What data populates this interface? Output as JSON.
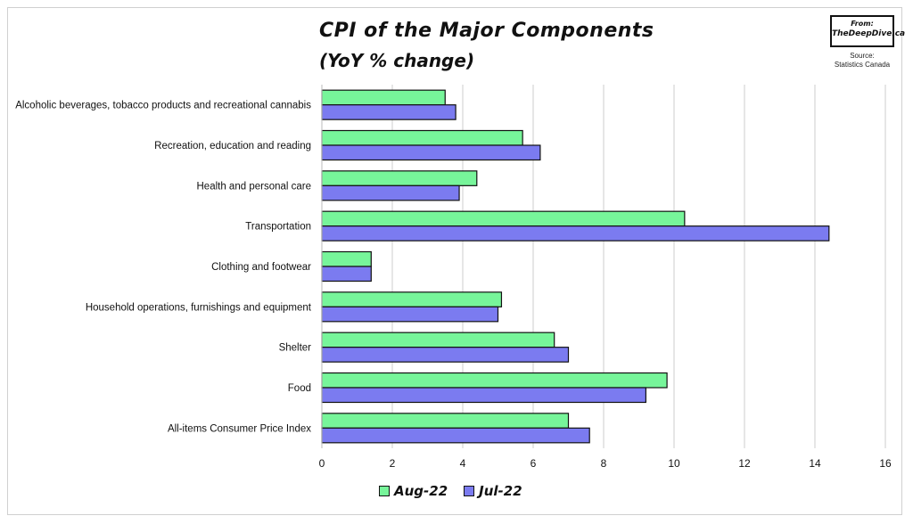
{
  "header": {
    "title": "CPI of the Major Components",
    "subtitle": "(YoY % change)",
    "brand_line1": "From:",
    "brand_line2": "TheDeepDive.ca",
    "source_line1": "Source:",
    "source_line2": "Statistics Canada"
  },
  "colors": {
    "aug": "#77f59a",
    "jul": "#7b7bf0",
    "stroke": "#111111",
    "grid": "#cccccc"
  },
  "chart_data": {
    "type": "bar",
    "orientation": "horizontal",
    "title": "CPI of the Major Components",
    "subtitle": "(YoY % change)",
    "categories": [
      "Alcoholic beverages, tobacco products and recreational cannabis",
      "Recreation, education and reading",
      "Health and personal care",
      "Transportation",
      "Clothing and footwear",
      "Household operations, furnishings and equipment",
      "Shelter",
      "Food",
      "All-items Consumer Price Index"
    ],
    "series": [
      {
        "name": "Aug-22",
        "values": [
          3.5,
          5.7,
          4.4,
          10.3,
          1.4,
          5.1,
          6.6,
          9.8,
          7.0
        ]
      },
      {
        "name": "Jul-22",
        "values": [
          3.8,
          6.2,
          3.9,
          14.4,
          1.4,
          5.0,
          7.0,
          9.2,
          7.6
        ]
      }
    ],
    "xlim": [
      0,
      16
    ],
    "xticks": [
      "0",
      "2",
      "4",
      "6",
      "8",
      "10",
      "12",
      "14",
      "16"
    ],
    "grid": "vertical",
    "legend_position": "bottom"
  }
}
